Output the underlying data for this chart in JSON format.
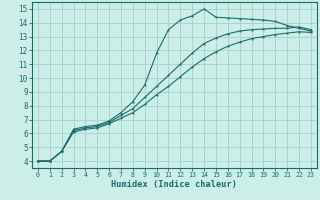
{
  "bg_color": "#cceee8",
  "grid_color": "#aad4ce",
  "line_color": "#1a6b6b",
  "xlabel": "Humidex (Indice chaleur)",
  "xlim": [
    -0.5,
    23.5
  ],
  "ylim": [
    3.5,
    15.5
  ],
  "xticks": [
    0,
    1,
    2,
    3,
    4,
    5,
    6,
    7,
    8,
    9,
    10,
    11,
    12,
    13,
    14,
    15,
    16,
    17,
    18,
    19,
    20,
    21,
    22,
    23
  ],
  "yticks": [
    4,
    5,
    6,
    7,
    8,
    9,
    10,
    11,
    12,
    13,
    14,
    15
  ],
  "line1_x": [
    0,
    1,
    2,
    3,
    4,
    5,
    6,
    7,
    8,
    9,
    10,
    11,
    12,
    13,
    14,
    15,
    16,
    17,
    18,
    19,
    20,
    21,
    22,
    23
  ],
  "line1_y": [
    4,
    4,
    4.7,
    6.3,
    6.5,
    6.6,
    6.9,
    7.5,
    8.3,
    9.5,
    11.8,
    13.5,
    14.2,
    14.5,
    15.0,
    14.4,
    14.35,
    14.3,
    14.25,
    14.2,
    14.1,
    13.8,
    13.6,
    13.4
  ],
  "line2_x": [
    0,
    1,
    2,
    3,
    4,
    5,
    6,
    7,
    8,
    9,
    10,
    11,
    12,
    13,
    14,
    15,
    16,
    17,
    18,
    19,
    20,
    21,
    22,
    23
  ],
  "line2_y": [
    4,
    4,
    4.7,
    6.2,
    6.4,
    6.5,
    6.8,
    7.3,
    7.8,
    8.6,
    9.4,
    10.2,
    11.0,
    11.8,
    12.5,
    12.9,
    13.2,
    13.4,
    13.5,
    13.55,
    13.6,
    13.6,
    13.7,
    13.5
  ],
  "line3_x": [
    0,
    1,
    2,
    3,
    4,
    5,
    6,
    7,
    8,
    9,
    10,
    11,
    12,
    13,
    14,
    15,
    16,
    17,
    18,
    19,
    20,
    21,
    22,
    23
  ],
  "line3_y": [
    4,
    4,
    4.7,
    6.1,
    6.3,
    6.4,
    6.7,
    7.1,
    7.5,
    8.1,
    8.8,
    9.4,
    10.1,
    10.8,
    11.4,
    11.9,
    12.3,
    12.6,
    12.85,
    13.0,
    13.15,
    13.25,
    13.35,
    13.3
  ]
}
